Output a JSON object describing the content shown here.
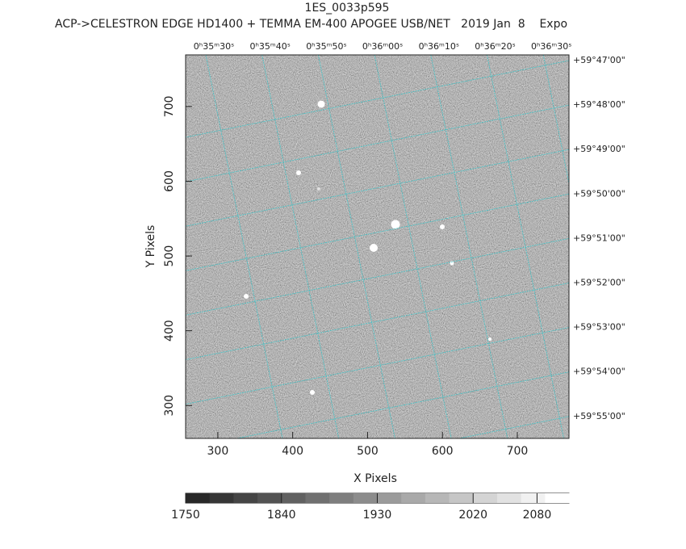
{
  "chart_data": {
    "type": "image",
    "title": "1ES_0033p595",
    "subtitle": "ACP->CELESTRON EDGE HD1400 + TEMMA EM-400 APOGEE USB/NET   2019 Jan  8    Expo",
    "xlabel": "X Pixels",
    "ylabel": "Y Pixels",
    "xlim": [
      257,
      769
    ],
    "xticks": [
      300,
      400,
      500,
      600,
      700
    ],
    "ylim": [
      256,
      769
    ],
    "yticks": [
      300,
      400,
      500,
      600,
      700
    ],
    "grid_color": "#3fc4c8",
    "top_ticks": [
      "0ʰ35ᵐ30ˢ",
      "0ʰ35ᵐ40ˢ",
      "0ʰ35ᵐ50ˢ",
      "0ʰ36ᵐ00ˢ",
      "0ʰ36ᵐ10ˢ",
      "0ʰ36ᵐ20ˢ",
      "0ʰ36ᵐ30ˢ"
    ],
    "right_ticks": [
      "+59°47'00\"",
      "+59°48'00\"",
      "+59°49'00\"",
      "+59°50'00\"",
      "+59°51'00\"",
      "+59°52'00\"",
      "+59°53'00\"",
      "+59°54'00\"",
      "+59°55'00\""
    ],
    "colorbar": {
      "lim": [
        1750,
        2110
      ],
      "ticks": [
        1750,
        1840,
        1930,
        2020,
        2080
      ],
      "colormap": "gray"
    }
  }
}
